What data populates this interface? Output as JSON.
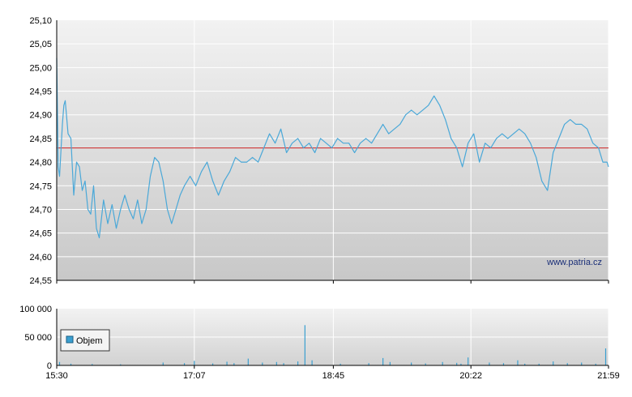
{
  "watermark": "www.patria.cz",
  "colors": {
    "price_line": "#4aa8d8",
    "reference_line": "#cc2222",
    "volume_bars": "#3a9fd0",
    "legend_swatch": "#3a9fd0",
    "axis": "#000000",
    "grid": "#ffffff",
    "panel_top": "#f2f2f2",
    "panel_bottom": "#c8c8c8"
  },
  "chart_data": [
    {
      "type": "line",
      "panel": "price",
      "x_unit": "time",
      "x_range": [
        "15:30",
        "21:59"
      ],
      "ylim": [
        24.55,
        25.1
      ],
      "ytick_labels": [
        "25,10",
        "25,05",
        "25,00",
        "24,95",
        "24,90",
        "24,85",
        "24,80",
        "24,75",
        "24,70",
        "24,65",
        "24,60",
        "24,55"
      ],
      "reference_line": 24.83,
      "grid": true,
      "series": [
        {
          "points": [
            [
              "15:30",
              25.02
            ],
            [
              "15:31",
              24.79
            ],
            [
              "15:32",
              24.77
            ],
            [
              "15:34",
              24.88
            ],
            [
              "15:35",
              24.92
            ],
            [
              "15:36",
              24.93
            ],
            [
              "15:38",
              24.86
            ],
            [
              "15:40",
              24.85
            ],
            [
              "15:42",
              24.73
            ],
            [
              "15:44",
              24.8
            ],
            [
              "15:46",
              24.79
            ],
            [
              "15:48",
              24.74
            ],
            [
              "15:50",
              24.76
            ],
            [
              "15:52",
              24.7
            ],
            [
              "15:54",
              24.69
            ],
            [
              "15:56",
              24.75
            ],
            [
              "15:58",
              24.66
            ],
            [
              "16:00",
              24.64
            ],
            [
              "16:03",
              24.72
            ],
            [
              "16:06",
              24.67
            ],
            [
              "16:09",
              24.71
            ],
            [
              "16:12",
              24.66
            ],
            [
              "16:15",
              24.7
            ],
            [
              "16:18",
              24.73
            ],
            [
              "16:21",
              24.7
            ],
            [
              "16:24",
              24.68
            ],
            [
              "16:27",
              24.72
            ],
            [
              "16:30",
              24.67
            ],
            [
              "16:33",
              24.7
            ],
            [
              "16:36",
              24.77
            ],
            [
              "16:39",
              24.81
            ],
            [
              "16:42",
              24.8
            ],
            [
              "16:45",
              24.76
            ],
            [
              "16:48",
              24.7
            ],
            [
              "16:51",
              24.67
            ],
            [
              "16:54",
              24.7
            ],
            [
              "16:57",
              24.73
            ],
            [
              "17:00",
              24.75
            ],
            [
              "17:04",
              24.77
            ],
            [
              "17:08",
              24.75
            ],
            [
              "17:12",
              24.78
            ],
            [
              "17:16",
              24.8
            ],
            [
              "17:20",
              24.76
            ],
            [
              "17:24",
              24.73
            ],
            [
              "17:28",
              24.76
            ],
            [
              "17:32",
              24.78
            ],
            [
              "17:36",
              24.81
            ],
            [
              "17:40",
              24.8
            ],
            [
              "17:44",
              24.8
            ],
            [
              "17:48",
              24.81
            ],
            [
              "17:52",
              24.8
            ],
            [
              "17:56",
              24.83
            ],
            [
              "18:00",
              24.86
            ],
            [
              "18:04",
              24.84
            ],
            [
              "18:08",
              24.87
            ],
            [
              "18:12",
              24.82
            ],
            [
              "18:16",
              24.84
            ],
            [
              "18:20",
              24.85
            ],
            [
              "18:24",
              24.83
            ],
            [
              "18:28",
              24.84
            ],
            [
              "18:32",
              24.82
            ],
            [
              "18:36",
              24.85
            ],
            [
              "18:40",
              24.84
            ],
            [
              "18:44",
              24.83
            ],
            [
              "18:48",
              24.85
            ],
            [
              "18:52",
              24.84
            ],
            [
              "18:56",
              24.84
            ],
            [
              "19:00",
              24.82
            ],
            [
              "19:04",
              24.84
            ],
            [
              "19:08",
              24.85
            ],
            [
              "19:12",
              24.84
            ],
            [
              "19:16",
              24.86
            ],
            [
              "19:20",
              24.88
            ],
            [
              "19:24",
              24.86
            ],
            [
              "19:28",
              24.87
            ],
            [
              "19:32",
              24.88
            ],
            [
              "19:36",
              24.9
            ],
            [
              "19:40",
              24.91
            ],
            [
              "19:44",
              24.9
            ],
            [
              "19:48",
              24.91
            ],
            [
              "19:52",
              24.92
            ],
            [
              "19:56",
              24.94
            ],
            [
              "20:00",
              24.92
            ],
            [
              "20:04",
              24.89
            ],
            [
              "20:08",
              24.85
            ],
            [
              "20:12",
              24.83
            ],
            [
              "20:16",
              24.79
            ],
            [
              "20:20",
              24.84
            ],
            [
              "20:24",
              24.86
            ],
            [
              "20:28",
              24.8
            ],
            [
              "20:32",
              24.84
            ],
            [
              "20:36",
              24.83
            ],
            [
              "20:40",
              24.85
            ],
            [
              "20:44",
              24.86
            ],
            [
              "20:48",
              24.85
            ],
            [
              "20:52",
              24.86
            ],
            [
              "20:56",
              24.87
            ],
            [
              "21:00",
              24.86
            ],
            [
              "21:04",
              24.84
            ],
            [
              "21:08",
              24.81
            ],
            [
              "21:12",
              24.76
            ],
            [
              "21:16",
              24.74
            ],
            [
              "21:20",
              24.82
            ],
            [
              "21:24",
              24.85
            ],
            [
              "21:28",
              24.88
            ],
            [
              "21:32",
              24.89
            ],
            [
              "21:36",
              24.88
            ],
            [
              "21:40",
              24.88
            ],
            [
              "21:44",
              24.87
            ],
            [
              "21:48",
              24.84
            ],
            [
              "21:52",
              24.83
            ],
            [
              "21:55",
              24.8
            ],
            [
              "21:58",
              24.8
            ],
            [
              "21:59",
              24.79
            ]
          ]
        }
      ]
    },
    {
      "type": "bar",
      "panel": "volume",
      "x_unit": "time",
      "x_range": [
        "15:30",
        "21:59"
      ],
      "ylim": [
        0,
        100000
      ],
      "ytick_labels": [
        "100 000",
        "50 000",
        "0"
      ],
      "xtick_labels": [
        "15:30",
        "17:07",
        "18:45",
        "20:22",
        "21:59"
      ],
      "legend": {
        "placement": "left",
        "entries": [
          "Objem"
        ]
      },
      "grid": true,
      "series": [
        {
          "name": "Objem",
          "points": [
            [
              "15:32",
              6000
            ],
            [
              "15:40",
              3000
            ],
            [
              "15:55",
              2500
            ],
            [
              "16:15",
              2000
            ],
            [
              "16:45",
              5000
            ],
            [
              "17:00",
              4000
            ],
            [
              "17:07",
              8000
            ],
            [
              "17:20",
              3500
            ],
            [
              "17:30",
              6500
            ],
            [
              "17:35",
              4000
            ],
            [
              "17:45",
              12000
            ],
            [
              "17:55",
              5000
            ],
            [
              "18:05",
              6000
            ],
            [
              "18:10",
              4000
            ],
            [
              "18:20",
              7000
            ],
            [
              "18:25",
              71000
            ],
            [
              "18:30",
              9000
            ],
            [
              "18:50",
              3000
            ],
            [
              "19:10",
              4000
            ],
            [
              "19:20",
              13000
            ],
            [
              "19:25",
              6000
            ],
            [
              "19:40",
              5000
            ],
            [
              "19:50",
              3500
            ],
            [
              "20:02",
              6000
            ],
            [
              "20:12",
              4500
            ],
            [
              "20:15",
              3000
            ],
            [
              "20:20",
              14000
            ],
            [
              "20:35",
              5000
            ],
            [
              "20:45",
              4000
            ],
            [
              "20:55",
              9000
            ],
            [
              "21:00",
              3000
            ],
            [
              "21:10",
              3000
            ],
            [
              "21:20",
              7000
            ],
            [
              "21:30",
              4000
            ],
            [
              "21:40",
              5000
            ],
            [
              "21:50",
              3000
            ],
            [
              "21:57",
              30000
            ]
          ]
        }
      ]
    }
  ]
}
